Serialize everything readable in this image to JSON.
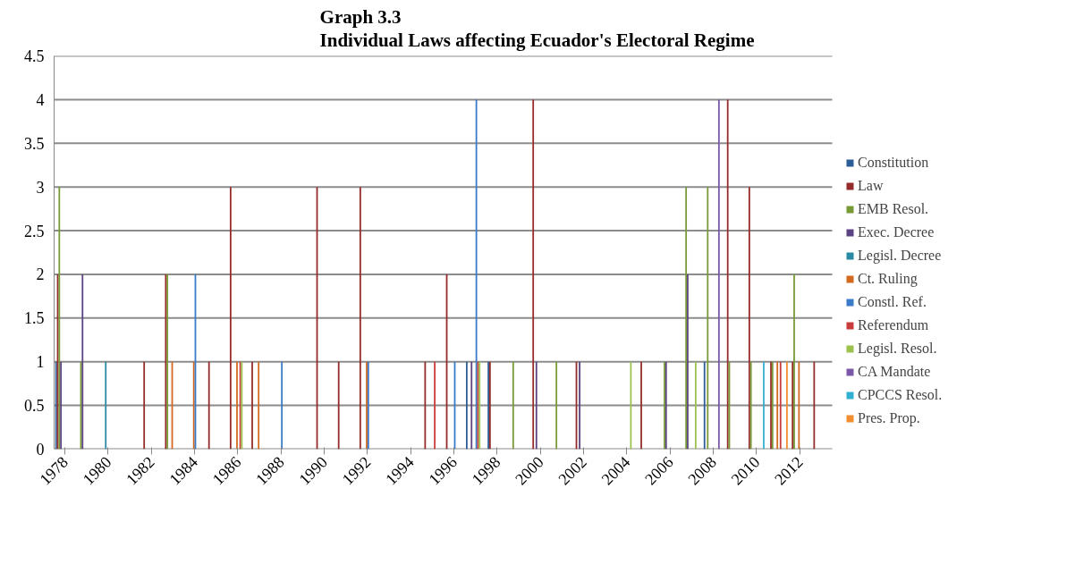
{
  "chart_data": {
    "type": "bar",
    "title": "Graph 3.3\nIndividual Laws affecting Ecuador's Electoral Regime",
    "categories": [
      "1978",
      null,
      "1980",
      null,
      "1982",
      null,
      "1984",
      null,
      "1986",
      null,
      "1988",
      null,
      "1990",
      null,
      "1992",
      null,
      "1994",
      null,
      "1996",
      null,
      "1998",
      null,
      "2000",
      null,
      "2002",
      null,
      "2004",
      null,
      "2006",
      null,
      "2008",
      null,
      "2010",
      null,
      "2012",
      null
    ],
    "ylim": [
      0,
      4.5
    ],
    "yticks": [
      0,
      0.5,
      1,
      1.5,
      2,
      2.5,
      3,
      3.5,
      4,
      4.5
    ],
    "grid": "y",
    "legend": "right",
    "series": [
      {
        "name": "Constitution",
        "color": "#2c5d96",
        "values": [
          1,
          null,
          null,
          null,
          null,
          null,
          null,
          null,
          null,
          null,
          null,
          null,
          null,
          null,
          null,
          null,
          null,
          null,
          null,
          1,
          1,
          null,
          null,
          null,
          null,
          null,
          null,
          null,
          null,
          null,
          1,
          null,
          null,
          null,
          null,
          null
        ]
      },
      {
        "name": "Law",
        "color": "#962b2b",
        "values": [
          2,
          null,
          null,
          null,
          1,
          2,
          null,
          1,
          3,
          1,
          null,
          null,
          3,
          1,
          3,
          null,
          null,
          1,
          2,
          null,
          1,
          null,
          4,
          null,
          1,
          null,
          null,
          1,
          null,
          null,
          null,
          4,
          3,
          1,
          1,
          1
        ]
      },
      {
        "name": "EMB Resol.",
        "color": "#779a34",
        "values": [
          3,
          1,
          null,
          null,
          null,
          2,
          null,
          null,
          null,
          null,
          null,
          null,
          null,
          null,
          null,
          null,
          null,
          null,
          null,
          null,
          null,
          1,
          null,
          1,
          null,
          null,
          null,
          null,
          1,
          3,
          3,
          1,
          1,
          1,
          2,
          null
        ]
      },
      {
        "name": "Exec. Decree",
        "color": "#5b4282",
        "values": [
          1,
          2,
          null,
          null,
          null,
          null,
          null,
          null,
          null,
          null,
          null,
          null,
          null,
          null,
          null,
          null,
          null,
          null,
          null,
          1,
          null,
          null,
          1,
          null,
          1,
          null,
          null,
          null,
          1,
          2,
          null,
          null,
          null,
          null,
          null,
          null
        ]
      },
      {
        "name": "Legisl. Decree",
        "color": "#2a8aa3",
        "values": [
          null,
          null,
          1,
          null,
          null,
          null,
          null,
          null,
          null,
          null,
          null,
          null,
          null,
          null,
          null,
          null,
          null,
          null,
          null,
          null,
          null,
          null,
          null,
          null,
          null,
          null,
          null,
          null,
          null,
          null,
          null,
          null,
          null,
          null,
          null,
          null
        ]
      },
      {
        "name": "Ct. Ruling",
        "color": "#d2691e",
        "values": [
          null,
          null,
          null,
          null,
          null,
          1,
          1,
          null,
          1,
          1,
          null,
          null,
          null,
          null,
          1,
          null,
          null,
          null,
          null,
          null,
          null,
          null,
          null,
          null,
          null,
          null,
          null,
          null,
          null,
          null,
          null,
          null,
          null,
          1,
          1,
          null
        ]
      },
      {
        "name": "Constl. Ref.",
        "color": "#3a7ac8",
        "values": [
          null,
          null,
          null,
          null,
          null,
          null,
          2,
          null,
          null,
          null,
          1,
          null,
          null,
          null,
          1,
          null,
          null,
          null,
          1,
          4,
          null,
          null,
          null,
          null,
          null,
          null,
          null,
          null,
          null,
          null,
          null,
          null,
          null,
          null,
          null,
          null
        ]
      },
      {
        "name": "Referendum",
        "color": "#c83c3c",
        "values": [
          null,
          null,
          null,
          null,
          null,
          null,
          null,
          null,
          1,
          null,
          null,
          null,
          null,
          null,
          null,
          null,
          null,
          1,
          null,
          1,
          null,
          null,
          null,
          null,
          null,
          null,
          null,
          null,
          null,
          null,
          null,
          null,
          null,
          1,
          null,
          null
        ]
      },
      {
        "name": "Legisl. Resol.",
        "color": "#9bc24e",
        "values": [
          null,
          null,
          null,
          null,
          null,
          null,
          null,
          null,
          1,
          null,
          null,
          null,
          null,
          null,
          null,
          null,
          null,
          null,
          null,
          1,
          null,
          null,
          null,
          null,
          null,
          null,
          1,
          null,
          null,
          1,
          null,
          null,
          null,
          null,
          null,
          null
        ]
      },
      {
        "name": "CA Mandate",
        "color": "#7b58a8",
        "values": [
          null,
          null,
          null,
          null,
          null,
          null,
          null,
          null,
          null,
          null,
          null,
          null,
          null,
          null,
          null,
          null,
          null,
          null,
          null,
          null,
          null,
          null,
          null,
          null,
          null,
          null,
          null,
          null,
          null,
          null,
          4,
          null,
          null,
          null,
          null,
          null
        ]
      },
      {
        "name": "CPCCS Resol.",
        "color": "#32b0d2",
        "values": [
          null,
          null,
          null,
          null,
          null,
          null,
          null,
          null,
          null,
          null,
          null,
          null,
          null,
          null,
          null,
          null,
          null,
          null,
          null,
          null,
          null,
          null,
          null,
          null,
          null,
          null,
          null,
          null,
          null,
          null,
          null,
          null,
          1,
          null,
          null,
          null
        ]
      },
      {
        "name": "Pres. Prop.",
        "color": "#f38d2e",
        "values": [
          null,
          null,
          null,
          null,
          null,
          null,
          null,
          null,
          null,
          null,
          null,
          null,
          null,
          null,
          null,
          null,
          null,
          null,
          null,
          null,
          null,
          null,
          null,
          null,
          null,
          null,
          null,
          null,
          null,
          null,
          null,
          null,
          null,
          1,
          null,
          null
        ]
      }
    ]
  }
}
